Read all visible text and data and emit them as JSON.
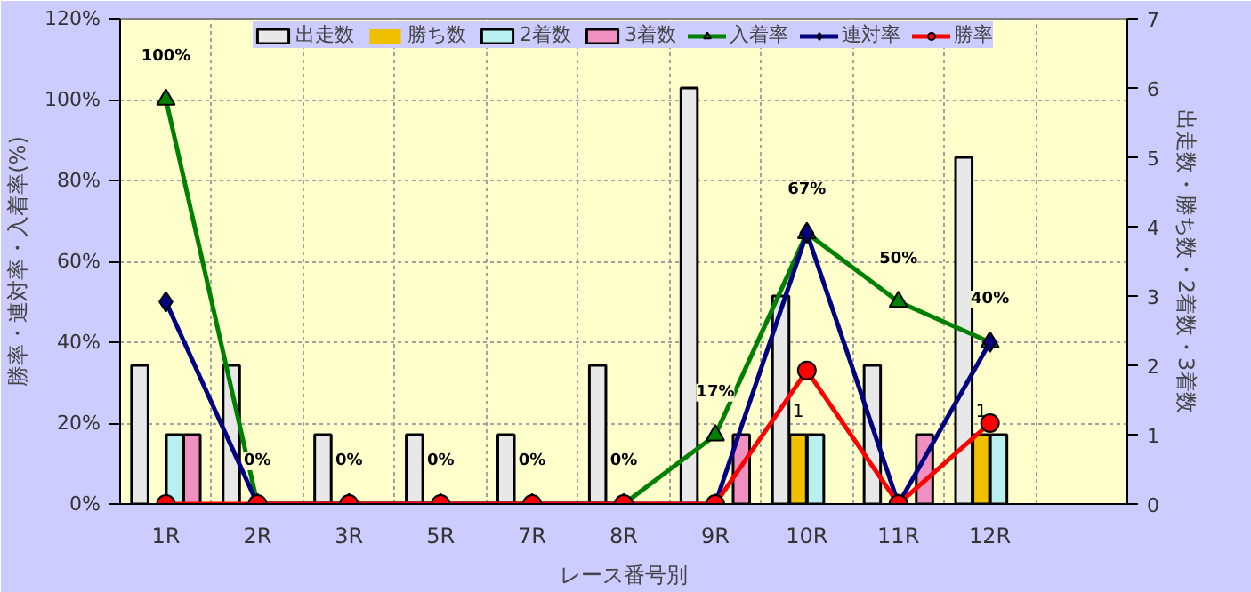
{
  "chart_data": {
    "type": "bar",
    "xlabel": "レース番号別",
    "ylabel": "勝率・連対率・入着率(%)",
    "y2label": "出走数・勝ち数・2着数・3着数",
    "categories": [
      "1R",
      "2R",
      "3R",
      "5R",
      "7R",
      "8R",
      "9R",
      "10R",
      "11R",
      "12R",
      null
    ],
    "ylim": [
      0,
      120
    ],
    "yticks": [
      {
        "value": 0,
        "label": "0%"
      },
      {
        "value": 20,
        "label": "20%"
      },
      {
        "value": 40,
        "label": "40%"
      },
      {
        "value": 60,
        "label": "60%"
      },
      {
        "value": 80,
        "label": "80%"
      },
      {
        "value": 100,
        "label": "100%"
      },
      {
        "value": 120,
        "label": "120%"
      }
    ],
    "y2lim": [
      0,
      7
    ],
    "y2ticks": [
      0,
      1,
      2,
      3,
      4,
      5,
      6,
      7
    ],
    "grid": true,
    "legend": "top",
    "series": [
      {
        "name": "出走数",
        "axis": "y2",
        "color": "#e8e8e8",
        "values": [
          2,
          2,
          1,
          1,
          1,
          2,
          6,
          3,
          2,
          5,
          null
        ]
      },
      {
        "name": "勝ち数",
        "axis": "y2",
        "color": "#f0c000",
        "values": [
          0,
          0,
          0,
          0,
          0,
          0,
          0,
          1,
          0,
          1,
          null
        ],
        "value_labels": [
          null,
          null,
          null,
          null,
          null,
          null,
          null,
          "1",
          null,
          "1",
          null
        ]
      },
      {
        "name": "2着数",
        "axis": "y2",
        "color": "#b8f0f0",
        "values": [
          1,
          0,
          0,
          0,
          0,
          0,
          0,
          1,
          0,
          1,
          null
        ]
      },
      {
        "name": "3着数",
        "axis": "y2",
        "color": "#f090c0",
        "values": [
          1,
          0,
          0,
          0,
          0,
          0,
          1,
          0,
          1,
          0,
          null
        ]
      },
      {
        "name": "入着率",
        "type": "line",
        "marker": "triangle",
        "color": "#008000",
        "values": [
          100,
          0,
          0,
          0,
          0,
          0,
          17,
          67,
          50,
          40,
          null
        ],
        "value_labels": [
          "100%",
          "0%",
          "0%",
          "0%",
          "0%",
          "0%",
          "17%",
          "67%",
          "50%",
          "40%",
          null
        ]
      },
      {
        "name": "連対率",
        "type": "line",
        "marker": "diamond",
        "color": "#000080",
        "values": [
          50,
          0,
          0,
          0,
          0,
          0,
          0,
          67,
          0,
          40,
          null
        ]
      },
      {
        "name": "勝率",
        "type": "line",
        "marker": "circle",
        "color": "#ff0000",
        "values": [
          0,
          0,
          0,
          0,
          0,
          0,
          0,
          33,
          0,
          20,
          null
        ]
      }
    ]
  }
}
